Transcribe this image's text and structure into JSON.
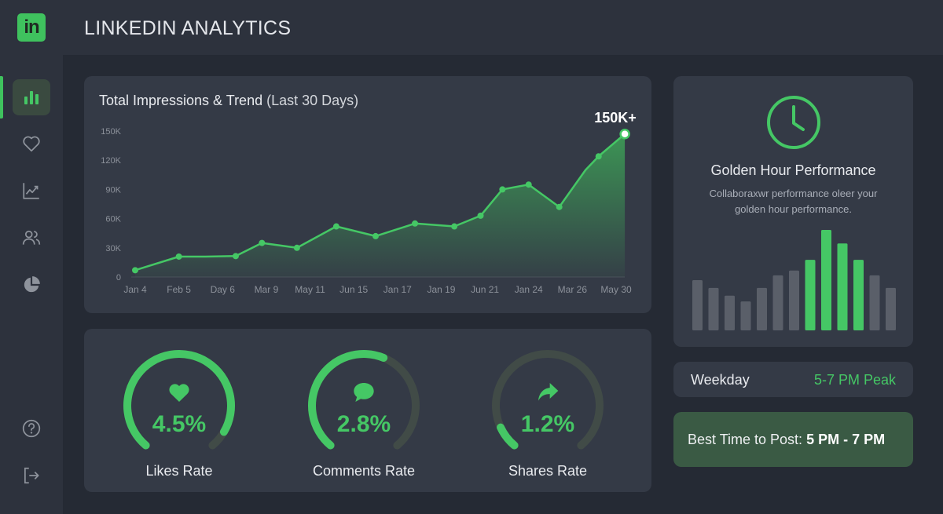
{
  "app": {
    "logo_text": "in",
    "title": "LINKEDIN ANALYTICS"
  },
  "sidebar": {
    "items": [
      {
        "icon": "bar-chart-icon",
        "active": true
      },
      {
        "icon": "heart-icon",
        "active": false
      },
      {
        "icon": "trend-icon",
        "active": false
      },
      {
        "icon": "users-icon",
        "active": false
      },
      {
        "icon": "pie-chart-icon",
        "active": false
      }
    ],
    "bottom_items": [
      {
        "icon": "help-icon"
      },
      {
        "icon": "logout-icon"
      }
    ]
  },
  "colors": {
    "accent": "#45c765",
    "bar_muted": "#5a5f69",
    "card": "#343a46"
  },
  "impressions": {
    "title_main": "Total Impressions & Trend",
    "title_sub": "(Last 30 Days)",
    "peak_label": "150K+"
  },
  "chart_data": [
    {
      "type": "area",
      "title": "Total Impressions & Trend (Last 30 Days)",
      "categories": [
        "Jan 4",
        "Feb 5",
        "Day 6",
        "Mar 9",
        "May 11",
        "Jun 15",
        "Jan 17",
        "Jan 19",
        "Jun 21",
        "Jan 24",
        "Mar 26",
        "May 30"
      ],
      "x_index": [
        0,
        1,
        2,
        3,
        4,
        5,
        6,
        7,
        8,
        9,
        10,
        11
      ],
      "y_ticks": [
        "0",
        "30K",
        "60K",
        "90K",
        "120K",
        "150K"
      ],
      "ylim": [
        0,
        150000
      ],
      "points": [
        [
          0,
          7000
        ],
        [
          1,
          21000
        ],
        [
          1.6,
          21000
        ],
        [
          2.3,
          21500
        ],
        [
          2.9,
          35000
        ],
        [
          3.7,
          30000
        ],
        [
          4.6,
          52000
        ],
        [
          5.5,
          42000
        ],
        [
          6.4,
          55000
        ],
        [
          7.3,
          52000
        ],
        [
          7.9,
          63000
        ],
        [
          8.4,
          90000
        ],
        [
          9.0,
          95000
        ],
        [
          9.7,
          72000
        ],
        [
          10.3,
          110000
        ],
        [
          10.6,
          124000
        ],
        [
          11.2,
          147000
        ]
      ],
      "marked_points": [
        0,
        1,
        3,
        4,
        5,
        6,
        7,
        8,
        9,
        10,
        11,
        12,
        13,
        15,
        16
      ],
      "grid": false
    },
    {
      "type": "bar",
      "title": "Golden Hour Performance",
      "values": [
        52,
        44,
        36,
        30,
        44,
        57,
        62,
        73,
        104,
        90,
        73,
        57,
        44
      ],
      "highlight": [
        false,
        false,
        false,
        false,
        false,
        false,
        false,
        true,
        true,
        true,
        true,
        false,
        false
      ],
      "grid": false
    }
  ],
  "golden": {
    "title": "Golden Hour Performance",
    "description": "Collaboraxwr performance oleer your golden hour performance."
  },
  "weekday": {
    "label": "Weekday",
    "value": "5-7 PM Peak"
  },
  "best_time": {
    "prefix": "Best Time to Post:",
    "value": "5 PM - 7 PM"
  },
  "rates": [
    {
      "label": "Likes Rate",
      "value": "4.5%",
      "fraction": 0.93,
      "icon": "heart-icon"
    },
    {
      "label": "Comments Rate",
      "value": "2.8%",
      "fraction": 0.58,
      "icon": "comment-icon"
    },
    {
      "label": "Shares Rate",
      "value": "1.2%",
      "fraction": 0.09,
      "icon": "share-icon"
    }
  ]
}
